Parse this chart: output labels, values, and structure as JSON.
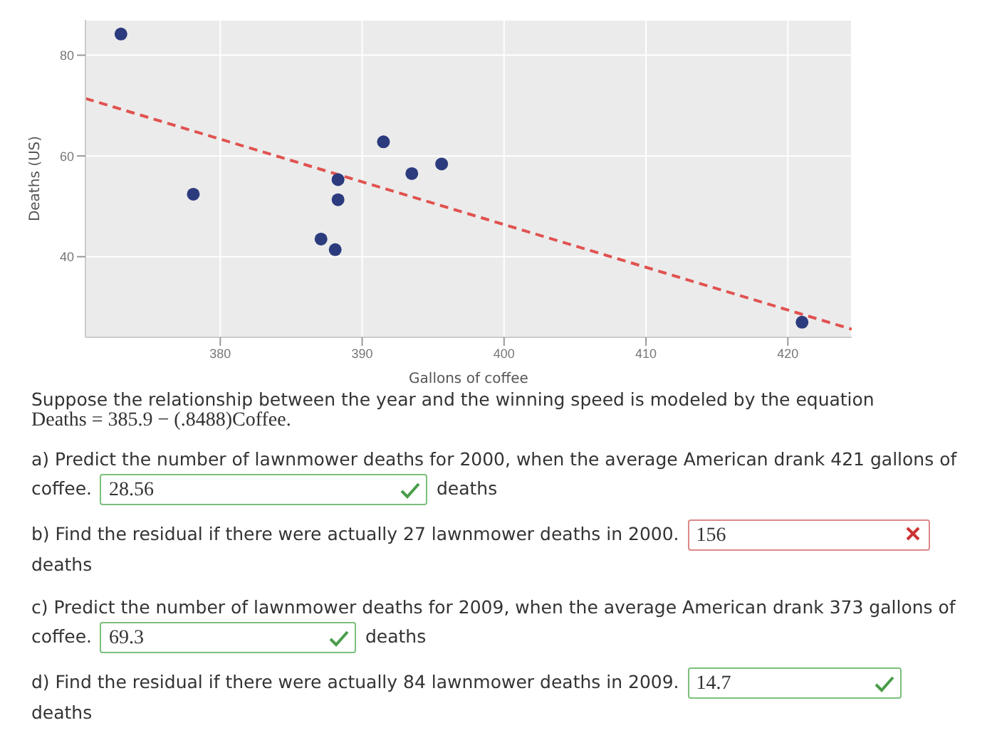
{
  "chart_data": {
    "type": "scatter",
    "xlabel": "Gallons of coffee",
    "ylabel": "Deaths (US)",
    "xlim": [
      370.5,
      424.5
    ],
    "ylim": [
      24,
      87
    ],
    "xticks": [
      380,
      390,
      400,
      410,
      420
    ],
    "yticks": [
      40,
      60,
      80
    ],
    "grid": true,
    "legend": false,
    "series": [
      {
        "color": "#2b3b7e",
        "marker": "circle",
        "x": [
          373,
          378.1,
          388.3,
          388.3,
          387.1,
          388.1,
          391.5,
          393.5,
          395.6,
          421
        ],
        "values": [
          84.2,
          52.4,
          55.3,
          51.3,
          43.5,
          41.4,
          62.8,
          56.5,
          58.4,
          27
        ]
      },
      {
        "type": "line",
        "color": "#e0524f",
        "marker": "none",
        "line_style": "dashed",
        "x": [
          370.5,
          424.5
        ],
        "values": [
          71.4,
          25.6
        ]
      }
    ],
    "annotations": [
      "Suppose the relationship between the year and the winning speed is modeled by the equation",
      "Deaths = 385.9 − (.8488)Coffee.",
      "a) Predict the number of lawnmower deaths for 2000, when the average American drank 421 gallons of coffee.",
      "28.56",
      "deaths",
      "b) Find the residual if there were actually 27 lawnmower deaths in 2000.",
      "156",
      "deaths",
      "c) Predict the number of lawnmower deaths for 2009, when the average American drank 373 gallons of coffee.",
      "69.3",
      "deaths",
      "d) Find the residual if there were actually 84 lawnmower deaths in 2009.",
      "14.7",
      "deaths"
    ]
  }
}
